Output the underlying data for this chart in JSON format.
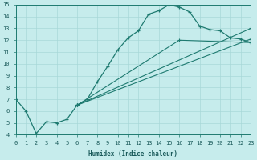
{
  "xlabel": "Humidex (Indice chaleur)",
  "background_color": "#c6ecec",
  "grid_color": "#a8d8d8",
  "line_color": "#1e7a70",
  "xlim": [
    0,
    23
  ],
  "ylim": [
    4,
    15
  ],
  "xtick_vals": [
    0,
    1,
    2,
    3,
    4,
    5,
    6,
    7,
    8,
    9,
    10,
    11,
    12,
    13,
    14,
    15,
    16,
    17,
    18,
    19,
    20,
    21,
    22,
    23
  ],
  "ytick_vals": [
    4,
    5,
    6,
    7,
    8,
    9,
    10,
    11,
    12,
    13,
    14,
    15
  ],
  "main_line": {
    "x": [
      0,
      1,
      2,
      3,
      4,
      5,
      6,
      7,
      8,
      9,
      10,
      11,
      12,
      13,
      14,
      15,
      16,
      17,
      18,
      19,
      20,
      21,
      22,
      23
    ],
    "y": [
      7.0,
      6.0,
      4.1,
      5.1,
      5.0,
      5.3,
      6.5,
      7.0,
      8.5,
      9.8,
      11.2,
      12.2,
      12.8,
      14.2,
      14.5,
      15.0,
      14.8,
      14.4,
      13.2,
      12.9,
      12.8,
      12.2,
      12.1,
      11.8
    ]
  },
  "line2": {
    "x": [
      6,
      23
    ],
    "y": [
      6.5,
      12.1
    ]
  },
  "line3": {
    "x": [
      6,
      23
    ],
    "y": [
      6.5,
      13.0
    ]
  },
  "line4": {
    "x": [
      6,
      16,
      23
    ],
    "y": [
      6.5,
      12.0,
      11.8
    ]
  }
}
